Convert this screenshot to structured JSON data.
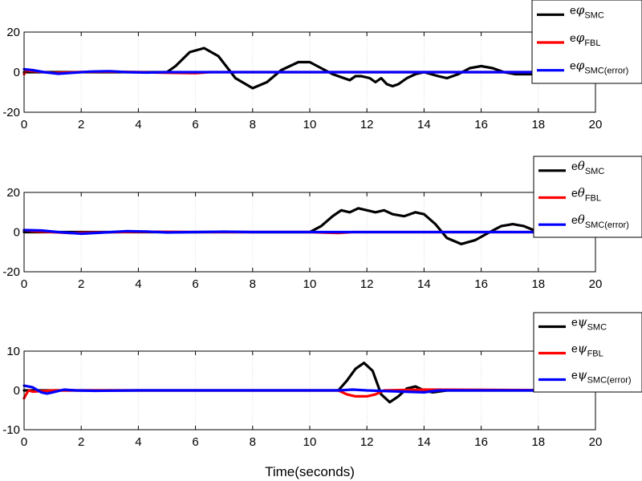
{
  "chart_data": [
    {
      "type": "line",
      "xlim": [
        0,
        20
      ],
      "ylim": [
        -20,
        20
      ],
      "xticks": [
        0,
        2,
        4,
        6,
        8,
        10,
        12,
        14,
        16,
        18,
        20
      ],
      "yticks": [
        -20,
        0,
        20
      ],
      "grid": "vertical",
      "legend_position": "top-right",
      "colors": {
        "SMC": "#000000",
        "FBL": "#ff0000",
        "SMC(error)": "#0000ff"
      },
      "series": [
        {
          "name": "eφ SMC",
          "main": "e",
          "symbol": "φ",
          "sub": "SMC",
          "points": [
            [
              0,
              0
            ],
            [
              5,
              0
            ],
            [
              5.3,
              3
            ],
            [
              5.8,
              10
            ],
            [
              6.3,
              12
            ],
            [
              6.8,
              8
            ],
            [
              7.4,
              -3
            ],
            [
              8,
              -8
            ],
            [
              8.5,
              -5
            ],
            [
              9,
              1
            ],
            [
              9.6,
              5
            ],
            [
              10,
              5
            ],
            [
              10.4,
              2
            ],
            [
              10.8,
              -1
            ],
            [
              11.2,
              -3
            ],
            [
              11.4,
              -4
            ],
            [
              11.6,
              -2
            ],
            [
              11.8,
              -2
            ],
            [
              12.1,
              -3
            ],
            [
              12.3,
              -5
            ],
            [
              12.5,
              -3
            ],
            [
              12.7,
              -6
            ],
            [
              12.9,
              -7
            ],
            [
              13.1,
              -6
            ],
            [
              13.4,
              -3
            ],
            [
              13.7,
              -1
            ],
            [
              14,
              0
            ],
            [
              14.5,
              -2
            ],
            [
              14.8,
              -3
            ],
            [
              15.2,
              -1
            ],
            [
              15.6,
              2
            ],
            [
              16,
              3
            ],
            [
              16.4,
              2
            ],
            [
              16.8,
              0
            ],
            [
              17.2,
              -1
            ],
            [
              17.8,
              -1
            ],
            [
              18,
              0
            ]
          ]
        },
        {
          "name": "eφ FBL",
          "main": "e",
          "symbol": "φ",
          "sub": "FBL",
          "points": [
            [
              0,
              -1
            ],
            [
              0.1,
              0.8
            ],
            [
              0.5,
              0.3
            ],
            [
              1,
              -0.4
            ],
            [
              1.5,
              -0.2
            ],
            [
              2,
              0.1
            ],
            [
              3,
              0.3
            ],
            [
              4,
              0
            ],
            [
              5,
              -0.3
            ],
            [
              6,
              -0.5
            ],
            [
              6.5,
              0
            ],
            [
              20,
              0
            ]
          ]
        },
        {
          "name": "eφ SMC(error)",
          "main": "e",
          "symbol": "φ",
          "sub": "SMC(error)",
          "points": [
            [
              0,
              1.5
            ],
            [
              0.3,
              1
            ],
            [
              0.7,
              0
            ],
            [
              1.2,
              -0.8
            ],
            [
              1.7,
              -0.3
            ],
            [
              2.3,
              0.3
            ],
            [
              3,
              0.5
            ],
            [
              3.6,
              0
            ],
            [
              4.3,
              -0.2
            ],
            [
              5,
              0
            ],
            [
              20,
              0
            ]
          ]
        }
      ]
    },
    {
      "type": "line",
      "xlim": [
        0,
        20
      ],
      "ylim": [
        -20,
        20
      ],
      "xticks": [
        0,
        2,
        4,
        6,
        8,
        10,
        12,
        14,
        16,
        18,
        20
      ],
      "yticks": [
        -20,
        0,
        20
      ],
      "grid": "vertical",
      "legend_position": "top-right",
      "colors": {
        "SMC": "#000000",
        "FBL": "#ff0000",
        "SMC(error)": "#0000ff"
      },
      "series": [
        {
          "name": "eθ SMC",
          "main": "e",
          "symbol": "θ",
          "sub": "SMC",
          "points": [
            [
              0,
              0
            ],
            [
              10,
              0
            ],
            [
              10.4,
              3
            ],
            [
              10.8,
              8
            ],
            [
              11.1,
              11
            ],
            [
              11.4,
              10
            ],
            [
              11.7,
              12
            ],
            [
              12,
              11
            ],
            [
              12.3,
              10
            ],
            [
              12.6,
              11
            ],
            [
              12.9,
              9
            ],
            [
              13.3,
              8
            ],
            [
              13.7,
              10
            ],
            [
              14,
              9
            ],
            [
              14.4,
              4
            ],
            [
              14.8,
              -3
            ],
            [
              15.3,
              -6
            ],
            [
              15.8,
              -4
            ],
            [
              16.3,
              0
            ],
            [
              16.7,
              3
            ],
            [
              17.1,
              4
            ],
            [
              17.5,
              3
            ],
            [
              18,
              0
            ],
            [
              18.5,
              -2
            ],
            [
              19,
              -2
            ]
          ]
        },
        {
          "name": "eθ FBL",
          "main": "e",
          "symbol": "θ",
          "sub": "FBL",
          "points": [
            [
              0,
              1
            ],
            [
              0.3,
              0.5
            ],
            [
              1,
              0
            ],
            [
              1.6,
              -0.5
            ],
            [
              2.5,
              -0.2
            ],
            [
              4,
              0.2
            ],
            [
              6,
              0
            ],
            [
              10,
              0
            ],
            [
              10.5,
              -0.3
            ],
            [
              11,
              -0.5
            ],
            [
              11.5,
              0
            ],
            [
              20,
              0
            ]
          ]
        },
        {
          "name": "eθ SMC(error)",
          "main": "e",
          "symbol": "θ",
          "sub": "SMC(error)",
          "points": [
            [
              0,
              1
            ],
            [
              0.6,
              0.8
            ],
            [
              1.2,
              0
            ],
            [
              2,
              -0.8
            ],
            [
              2.8,
              -0.2
            ],
            [
              3.6,
              0.5
            ],
            [
              4.3,
              0.3
            ],
            [
              5,
              -0.2
            ],
            [
              6,
              0
            ],
            [
              7,
              0.2
            ],
            [
              8,
              0
            ],
            [
              10,
              0
            ],
            [
              20,
              0
            ]
          ]
        }
      ]
    },
    {
      "type": "line",
      "xlim": [
        0,
        20
      ],
      "ylim": [
        -10,
        10
      ],
      "xticks": [
        0,
        2,
        4,
        6,
        8,
        10,
        12,
        14,
        16,
        18,
        20
      ],
      "yticks": [
        -10,
        0,
        10
      ],
      "grid": "vertical",
      "legend_position": "top-right",
      "xlabel": "Time(seconds)",
      "colors": {
        "SMC": "#000000",
        "FBL": "#ff0000",
        "SMC(error)": "#0000ff"
      },
      "series": [
        {
          "name": "eψ SMC",
          "main": "e",
          "symbol": "ψ",
          "sub": "SMC",
          "points": [
            [
              0,
              0
            ],
            [
              11,
              0
            ],
            [
              11.3,
              2.5
            ],
            [
              11.6,
              5.5
            ],
            [
              11.9,
              7
            ],
            [
              12.2,
              5
            ],
            [
              12.5,
              -1
            ],
            [
              12.8,
              -3
            ],
            [
              13.1,
              -1.5
            ],
            [
              13.4,
              0.5
            ],
            [
              13.7,
              1
            ],
            [
              14,
              0
            ],
            [
              14.3,
              -0.5
            ],
            [
              14.8,
              0
            ],
            [
              20,
              0
            ]
          ]
        },
        {
          "name": "eψ FBL",
          "main": "e",
          "symbol": "ψ",
          "sub": "FBL",
          "points": [
            [
              0,
              -2
            ],
            [
              0.15,
              0
            ],
            [
              0.3,
              -0.3
            ],
            [
              1,
              0
            ],
            [
              11,
              0
            ],
            [
              11.3,
              -1
            ],
            [
              11.6,
              -1.5
            ],
            [
              12,
              -1.5
            ],
            [
              12.3,
              -1
            ],
            [
              12.6,
              0
            ],
            [
              14,
              0.2
            ],
            [
              20,
              0
            ]
          ]
        },
        {
          "name": "eψ SMC(error)",
          "main": "e",
          "symbol": "ψ",
          "sub": "SMC(error)",
          "points": [
            [
              0,
              1.2
            ],
            [
              0.3,
              0.8
            ],
            [
              0.6,
              -0.5
            ],
            [
              0.8,
              -0.8
            ],
            [
              1,
              -0.5
            ],
            [
              1.4,
              0.2
            ],
            [
              1.8,
              0
            ],
            [
              2.5,
              -0.1
            ],
            [
              4,
              0
            ],
            [
              11,
              0
            ],
            [
              11.5,
              0.2
            ],
            [
              12,
              0
            ],
            [
              14,
              -0.5
            ],
            [
              14.5,
              0
            ],
            [
              20,
              0
            ]
          ]
        }
      ]
    }
  ]
}
